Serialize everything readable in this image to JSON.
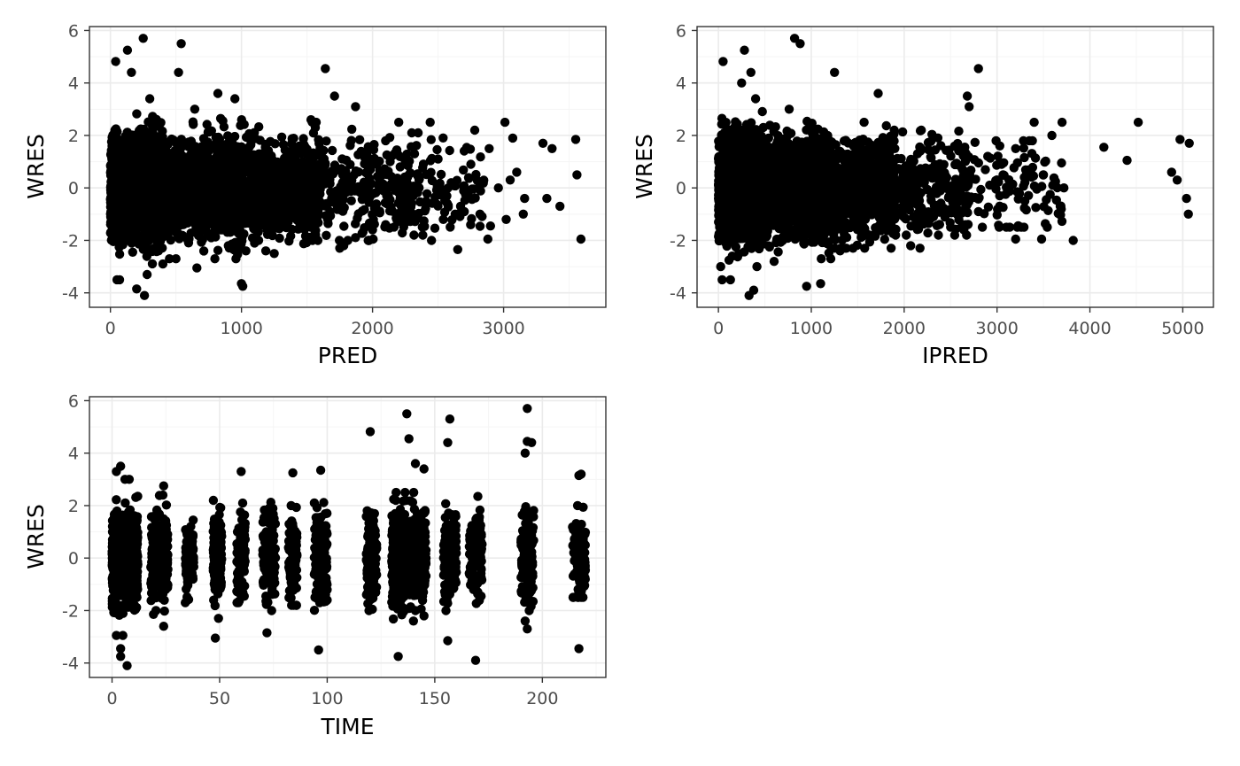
{
  "colors": {
    "panel_border": "#333333",
    "grid_major": "#ebebeb",
    "grid_minor": "#f5f5f5",
    "point": "#000000",
    "tick_text": "#4d4d4d",
    "title_text": "#000000",
    "background": "#ffffff"
  },
  "chart_data": [
    {
      "type": "scatter",
      "title": "",
      "xlabel": "PRED",
      "ylabel": "WRES",
      "xlim": [
        -160,
        3780
      ],
      "ylim": [
        -4.55,
        6.15
      ],
      "x_ticks": [
        0,
        1000,
        2000,
        3000
      ],
      "x_tick_labels": [
        "0",
        "1000",
        "2000",
        "3000"
      ],
      "y_ticks": [
        -4,
        -2,
        0,
        2,
        4,
        6
      ],
      "y_tick_labels": [
        "-4",
        "-2",
        "0",
        "2",
        "4",
        "6"
      ],
      "grid": true,
      "points": [
        [
          40,
          4.82
        ],
        [
          130,
          5.25
        ],
        [
          250,
          5.7
        ],
        [
          540,
          5.5
        ],
        [
          520,
          4.4
        ],
        [
          1640,
          4.55
        ],
        [
          1710,
          3.5
        ],
        [
          1870,
          3.1
        ],
        [
          160,
          4.4
        ],
        [
          300,
          3.4
        ],
        [
          820,
          3.6
        ],
        [
          950,
          3.4
        ],
        [
          1530,
          2.6
        ],
        [
          1570,
          2.5
        ],
        [
          2200,
          2.5
        ],
        [
          2440,
          2.5
        ],
        [
          3010,
          2.5
        ],
        [
          2780,
          2.2
        ],
        [
          2890,
          1.5
        ],
        [
          3070,
          1.9
        ],
        [
          3300,
          1.7
        ],
        [
          3370,
          1.5
        ],
        [
          3550,
          1.85
        ],
        [
          3560,
          0.5
        ],
        [
          3590,
          -1.95
        ],
        [
          3150,
          -1.0
        ],
        [
          3160,
          -0.4
        ],
        [
          3100,
          0.6
        ],
        [
          3330,
          -0.4
        ],
        [
          3430,
          -0.7
        ],
        [
          3020,
          -1.2
        ],
        [
          3050,
          0.3
        ],
        [
          2880,
          -1.95
        ],
        [
          2900,
          -1.45
        ],
        [
          2650,
          -2.35
        ],
        [
          2450,
          -2.0
        ],
        [
          2540,
          -1.2
        ],
        [
          2000,
          -1.6
        ],
        [
          1780,
          -2.2
        ],
        [
          1750,
          -2.3
        ],
        [
          1250,
          -2.5
        ],
        [
          1000,
          -3.65
        ],
        [
          1010,
          -3.75
        ],
        [
          660,
          -3.05
        ],
        [
          260,
          -4.1
        ],
        [
          200,
          -3.85
        ],
        [
          50,
          -3.5
        ],
        [
          70,
          -3.5
        ],
        [
          280,
          -3.3
        ],
        [
          400,
          -2.9
        ],
        [
          500,
          -2.7
        ],
        [
          900,
          -2.2
        ],
        [
          1100,
          -2.1
        ],
        [
          2100,
          -1.4
        ],
        [
          2300,
          -1.2
        ],
        [
          2700,
          -0.9
        ],
        [
          2820,
          -1.0
        ],
        [
          2600,
          0.2
        ],
        [
          2960,
          0.0
        ],
        [
          2750,
          0.9
        ],
        [
          2500,
          1.1
        ],
        [
          2100,
          1.8
        ],
        [
          2320,
          1.3
        ]
      ],
      "point_clouds": [
        {
          "x": [
            0,
            400
          ],
          "y": [
            -3.0,
            3.3
          ],
          "n": 2200
        },
        {
          "x": [
            300,
            1000
          ],
          "y": [
            -2.7,
            3.0
          ],
          "n": 1600
        },
        {
          "x": [
            900,
            1600
          ],
          "y": [
            -2.4,
            2.6
          ],
          "n": 900
        },
        {
          "x": [
            1500,
            2300
          ],
          "y": [
            -2.0,
            2.3
          ],
          "n": 260
        },
        {
          "x": [
            2200,
            2850
          ],
          "y": [
            -1.8,
            2.1
          ],
          "n": 110
        }
      ]
    },
    {
      "type": "scatter",
      "title": "",
      "xlabel": "IPRED",
      "ylabel": "WRES",
      "xlim": [
        -230,
        5330
      ],
      "ylim": [
        -4.55,
        6.15
      ],
      "x_ticks": [
        0,
        1000,
        2000,
        3000,
        4000,
        5000
      ],
      "x_tick_labels": [
        "0",
        "1000",
        "2000",
        "3000",
        "4000",
        "5000"
      ],
      "y_ticks": [
        -4,
        -2,
        0,
        2,
        4,
        6
      ],
      "y_tick_labels": [
        "-4",
        "-2",
        "0",
        "2",
        "4",
        "6"
      ],
      "grid": true,
      "points": [
        [
          50,
          4.82
        ],
        [
          280,
          5.25
        ],
        [
          820,
          5.7
        ],
        [
          880,
          5.5
        ],
        [
          1250,
          4.4
        ],
        [
          2800,
          4.55
        ],
        [
          2680,
          3.5
        ],
        [
          2700,
          3.1
        ],
        [
          350,
          4.4
        ],
        [
          250,
          4.0
        ],
        [
          400,
          3.4
        ],
        [
          1720,
          3.6
        ],
        [
          3400,
          2.5
        ],
        [
          3700,
          2.5
        ],
        [
          3590,
          2.0
        ],
        [
          4150,
          1.55
        ],
        [
          4400,
          1.05
        ],
        [
          4520,
          2.5
        ],
        [
          4880,
          0.6
        ],
        [
          4940,
          0.3
        ],
        [
          4970,
          1.85
        ],
        [
          5070,
          1.7
        ],
        [
          5040,
          -0.4
        ],
        [
          5060,
          -1.0
        ],
        [
          3820,
          -2.0
        ],
        [
          3480,
          -1.95
        ],
        [
          3200,
          -1.95
        ],
        [
          3100,
          -1.5
        ],
        [
          2800,
          -0.9
        ],
        [
          3680,
          -0.7
        ],
        [
          3720,
          0.0
        ],
        [
          3500,
          0.5
        ],
        [
          3300,
          -0.5
        ],
        [
          3200,
          1.5
        ],
        [
          3050,
          0.9
        ],
        [
          1210,
          -2.7
        ],
        [
          1310,
          -2.4
        ],
        [
          1100,
          -3.65
        ],
        [
          950,
          -3.75
        ],
        [
          380,
          -3.9
        ],
        [
          330,
          -4.1
        ],
        [
          40,
          -3.5
        ],
        [
          130,
          -3.5
        ],
        [
          600,
          -2.8
        ],
        [
          1860,
          -2.3
        ],
        [
          2070,
          -2.2
        ],
        [
          2170,
          -2.3
        ],
        [
          2500,
          -1.5
        ],
        [
          2660,
          -1.4
        ],
        [
          2900,
          1.2
        ],
        [
          3030,
          1.6
        ],
        [
          3300,
          0.2
        ],
        [
          3600,
          0.1
        ]
      ],
      "point_clouds": [
        {
          "x": [
            0,
            500
          ],
          "y": [
            -3.0,
            3.3
          ],
          "n": 2000
        },
        {
          "x": [
            300,
            1200
          ],
          "y": [
            -2.7,
            3.0
          ],
          "n": 1700
        },
        {
          "x": [
            1000,
            1900
          ],
          "y": [
            -2.3,
            2.5
          ],
          "n": 900
        },
        {
          "x": [
            1800,
            2700
          ],
          "y": [
            -1.8,
            2.2
          ],
          "n": 300
        },
        {
          "x": [
            2600,
            3700
          ],
          "y": [
            -1.5,
            1.8
          ],
          "n": 100
        }
      ]
    },
    {
      "type": "scatter",
      "title": "",
      "xlabel": "TIME",
      "ylabel": "WRES",
      "xlim": [
        -10.5,
        229.5
      ],
      "ylim": [
        -4.55,
        6.15
      ],
      "x_ticks": [
        0,
        50,
        100,
        150,
        200
      ],
      "x_tick_labels": [
        "0",
        "50",
        "100",
        "150",
        "200"
      ],
      "y_ticks": [
        -4,
        -2,
        0,
        2,
        4,
        6
      ],
      "y_tick_labels": [
        "-4",
        "-2",
        "0",
        "2",
        "4",
        "6"
      ],
      "grid": true,
      "points": [
        [
          4,
          3.5
        ],
        [
          2,
          3.3
        ],
        [
          6,
          3.0
        ],
        [
          8,
          3.0
        ],
        [
          7,
          -4.1
        ],
        [
          4,
          -3.75
        ],
        [
          4,
          -3.45
        ],
        [
          2,
          -2.95
        ],
        [
          5,
          -2.95
        ],
        [
          24,
          2.75
        ],
        [
          24,
          -2.6
        ],
        [
          48,
          -3.05
        ],
        [
          60,
          3.3
        ],
        [
          72,
          -2.85
        ],
        [
          84,
          3.25
        ],
        [
          96,
          -3.5
        ],
        [
          97,
          3.35
        ],
        [
          120,
          4.82
        ],
        [
          137,
          5.5
        ],
        [
          138,
          4.55
        ],
        [
          141,
          3.6
        ],
        [
          145,
          3.4
        ],
        [
          133,
          -3.75
        ],
        [
          157,
          5.3
        ],
        [
          156,
          4.4
        ],
        [
          156,
          -3.15
        ],
        [
          169,
          -3.9
        ],
        [
          193,
          5.7
        ],
        [
          193,
          4.45
        ],
        [
          195,
          4.4
        ],
        [
          192,
          4.0
        ],
        [
          193,
          -2.7
        ],
        [
          192,
          -2.4
        ],
        [
          217,
          -3.45
        ],
        [
          218,
          3.2
        ],
        [
          217,
          3.15
        ],
        [
          132,
          2.5
        ],
        [
          121,
          -1.95
        ],
        [
          170,
          2.35
        ],
        [
          145,
          -2.2
        ],
        [
          141,
          -2.0
        ]
      ],
      "time_clusters": [
        {
          "t": [
            0,
            12
          ],
          "y": [
            -2.5,
            2.9
          ],
          "n": 700
        },
        {
          "t": [
            18,
            26
          ],
          "y": [
            -2.2,
            2.4
          ],
          "n": 220
        },
        {
          "t": [
            34,
            38
          ],
          "y": [
            -1.7,
            1.7
          ],
          "n": 90
        },
        {
          "t": [
            47,
            51
          ],
          "y": [
            -2.3,
            2.2
          ],
          "n": 150
        },
        {
          "t": [
            58,
            62
          ],
          "y": [
            -1.7,
            2.1
          ],
          "n": 90
        },
        {
          "t": [
            70,
            76
          ],
          "y": [
            -2.0,
            2.3
          ],
          "n": 150
        },
        {
          "t": [
            82,
            86
          ],
          "y": [
            -1.8,
            2.0
          ],
          "n": 90
        },
        {
          "t": [
            94,
            100
          ],
          "y": [
            -2.0,
            2.3
          ],
          "n": 140
        },
        {
          "t": [
            118,
            123
          ],
          "y": [
            -2.0,
            2.3
          ],
          "n": 130
        },
        {
          "t": [
            130,
            146
          ],
          "y": [
            -2.4,
            2.5
          ],
          "n": 650
        },
        {
          "t": [
            154,
            160
          ],
          "y": [
            -2.0,
            2.2
          ],
          "n": 150
        },
        {
          "t": [
            166,
            172
          ],
          "y": [
            -1.8,
            2.2
          ],
          "n": 120
        },
        {
          "t": [
            190,
            196
          ],
          "y": [
            -2.0,
            2.3
          ],
          "n": 120
        },
        {
          "t": [
            214,
            220
          ],
          "y": [
            -1.5,
            2.0
          ],
          "n": 120
        }
      ]
    }
  ]
}
